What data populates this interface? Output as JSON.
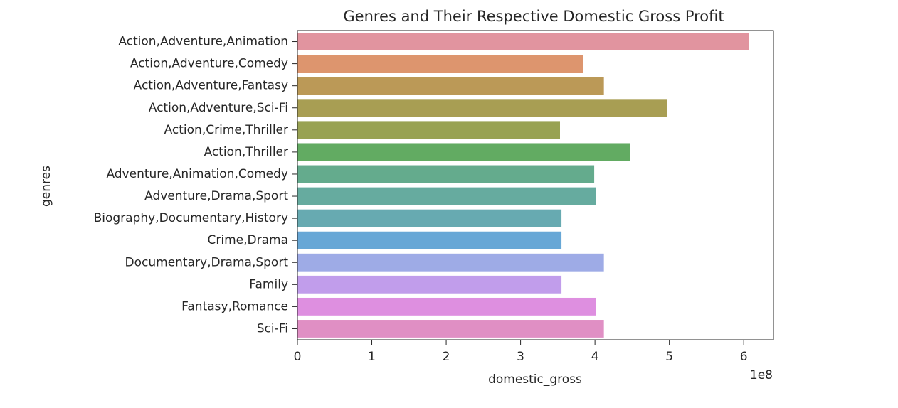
{
  "chart_data": {
    "type": "bar",
    "orientation": "horizontal",
    "title": "Genres and Their Respective Domestic Gross Profit",
    "xlabel": "domestic_gross",
    "ylabel": "genres",
    "x_scale_label": "1e8",
    "xlim": [
      0,
      6.4
    ],
    "x_ticks": [
      "0",
      "1",
      "2",
      "3",
      "4",
      "5",
      "6"
    ],
    "grid": false,
    "legend": "none",
    "categories": [
      "Action,Adventure,Animation",
      "Action,Adventure,Comedy",
      "Action,Adventure,Fantasy",
      "Action,Adventure,Sci-Fi",
      "Action,Crime,Thriller",
      "Action,Thriller",
      "Adventure,Animation,Comedy",
      "Adventure,Drama,Sport",
      "Biography,Documentary,History",
      "Crime,Drama",
      "Documentary,Drama,Sport",
      "Family",
      "Fantasy,Romance",
      "Sci-Fi"
    ],
    "values": [
      6.07,
      3.84,
      4.12,
      4.97,
      3.53,
      4.47,
      3.99,
      4.01,
      3.55,
      3.55,
      4.12,
      3.55,
      4.01,
      4.12
    ],
    "colors": [
      "#e1949f",
      "#dd956e",
      "#bb9957",
      "#a89e53",
      "#98a253",
      "#62ab62",
      "#64ab8d",
      "#66ab9f",
      "#67aab1",
      "#67a7d6",
      "#9eabe6",
      "#c19deb",
      "#de8fe0",
      "#e08fc4"
    ]
  }
}
